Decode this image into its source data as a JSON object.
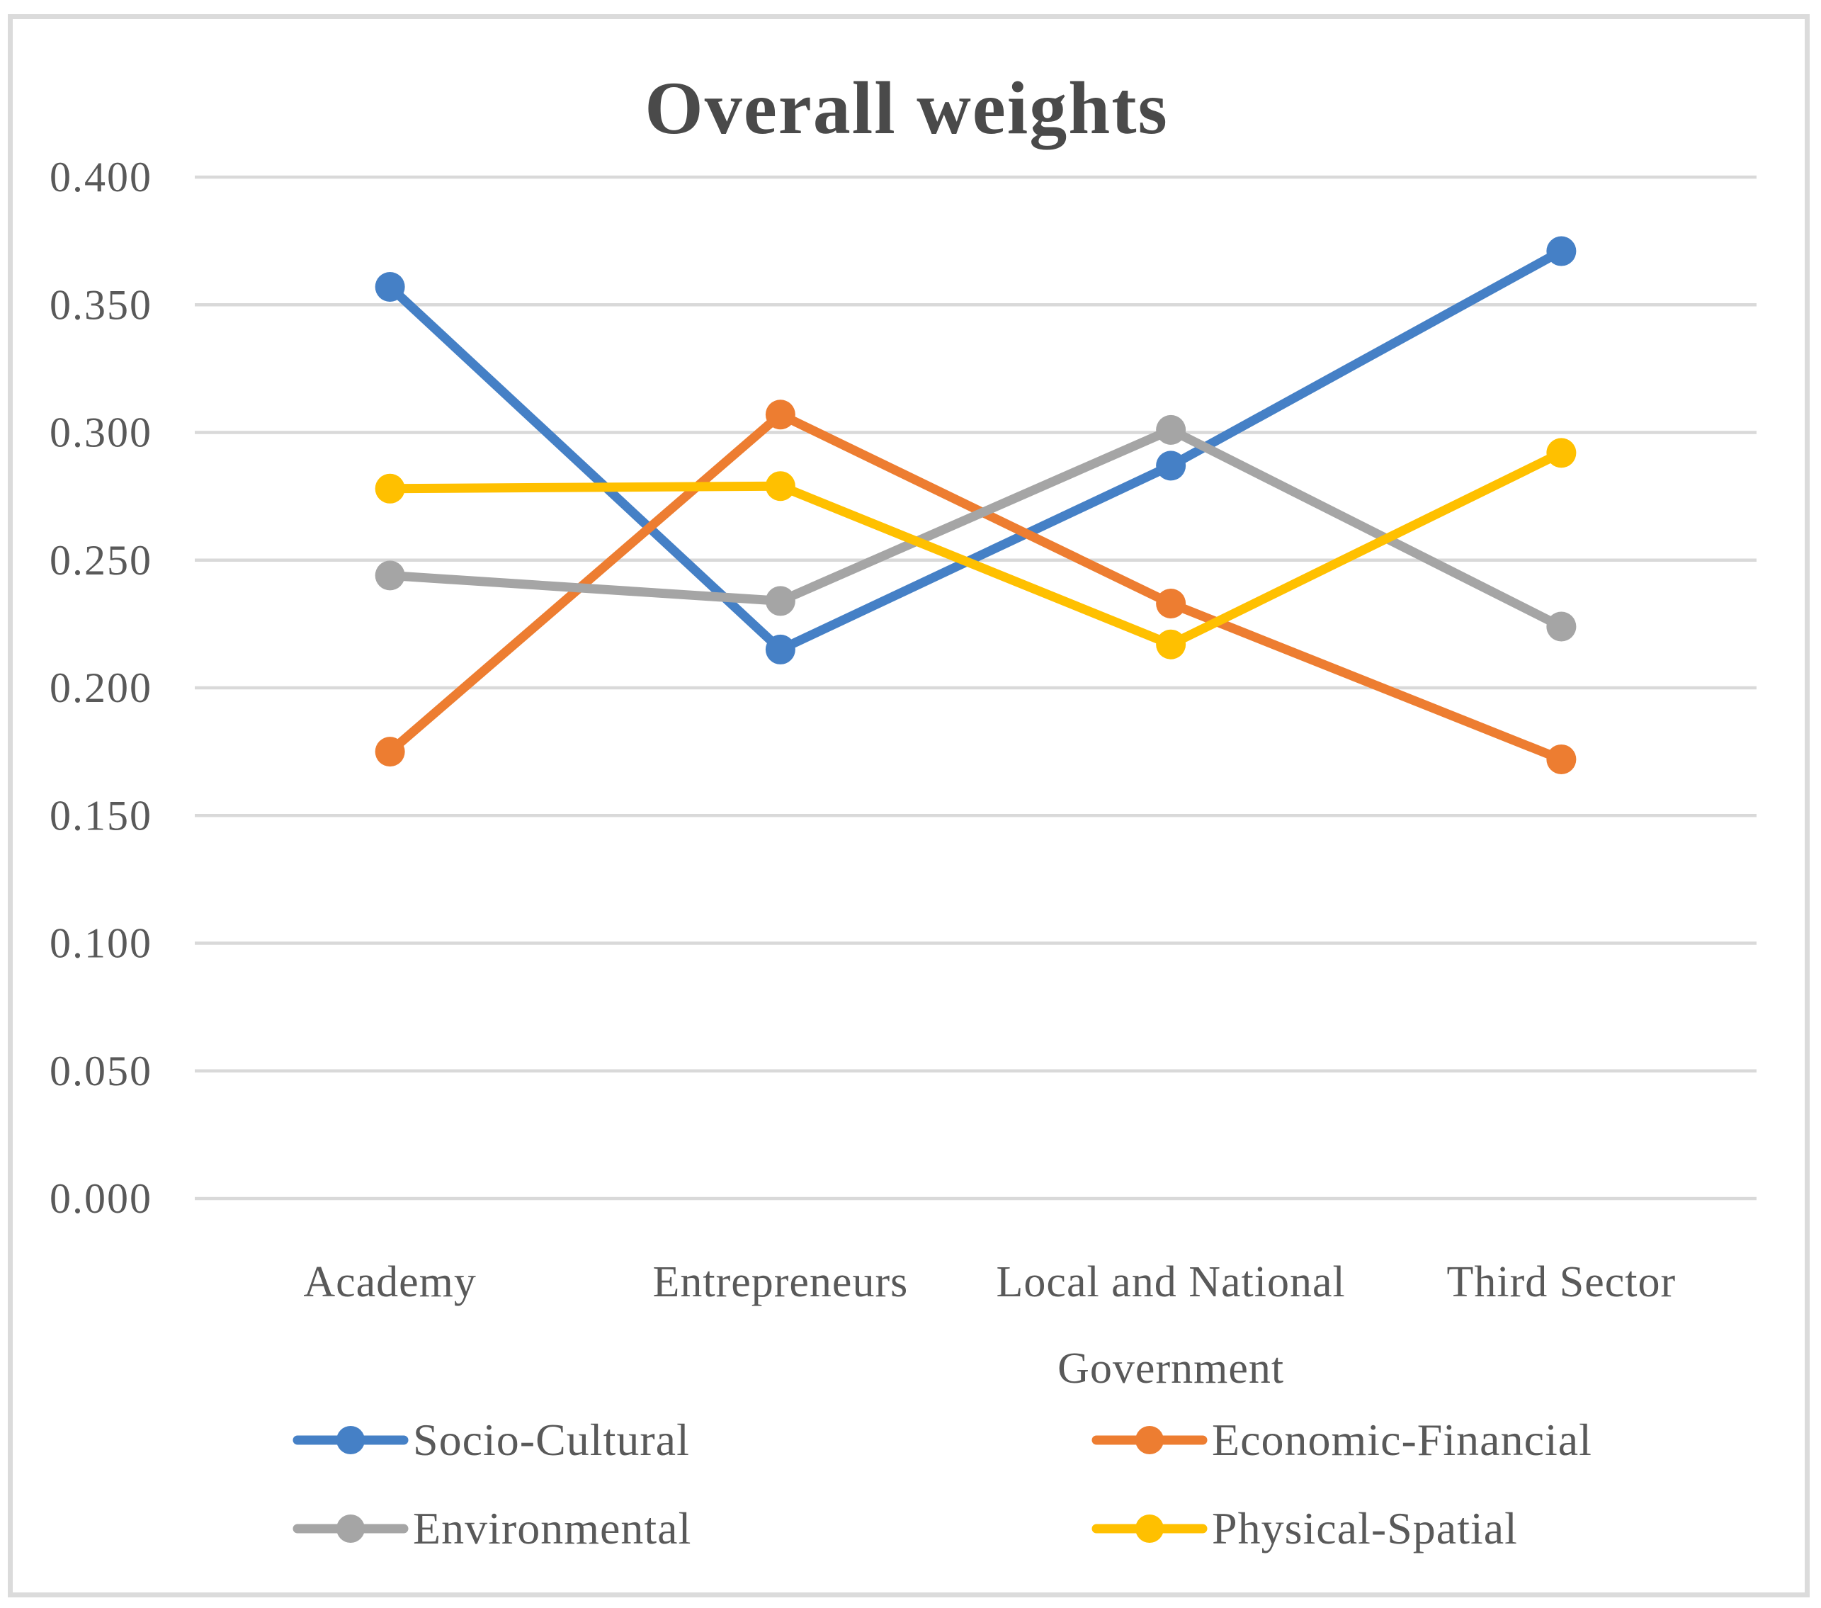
{
  "figure": {
    "title": "Overall weights"
  },
  "chart_data": {
    "type": "line",
    "title": "Overall weights",
    "categories": [
      "Academy",
      "Entrepreneurs",
      "Local and National\nGovernment",
      "Third Sector"
    ],
    "series": [
      {
        "name": "Socio-Cultural",
        "color": "#4580C6",
        "values": [
          0.357,
          0.215,
          0.287,
          0.371
        ]
      },
      {
        "name": "Economic-Financial",
        "color": "#ED7D31",
        "values": [
          0.175,
          0.307,
          0.233,
          0.172
        ]
      },
      {
        "name": "Environmental",
        "color": "#A5A5A5",
        "values": [
          0.244,
          0.234,
          0.301,
          0.224
        ]
      },
      {
        "name": "Physical-Spatial",
        "color": "#FFC000",
        "values": [
          0.278,
          0.279,
          0.217,
          0.292
        ]
      }
    ],
    "ylim": [
      0.0,
      0.4
    ],
    "ytick_step": 0.05,
    "ytick_labels": [
      "0.400",
      "0.350",
      "0.300",
      "0.250",
      "0.200",
      "0.150",
      "0.100",
      "0.050",
      "0.000"
    ],
    "grid": true,
    "gridline_color": "#D9D9D9",
    "frame_color": "#DBDBDB",
    "text_color": "#595959",
    "title_color": "#4a4a4a",
    "legend_position": "bottom",
    "legend_columns": 2,
    "marker_style": "circle"
  }
}
